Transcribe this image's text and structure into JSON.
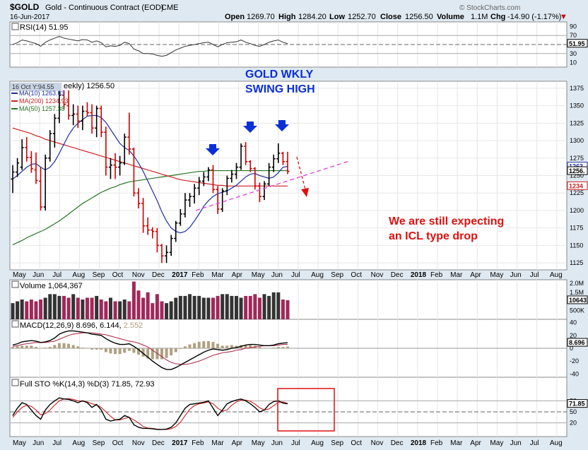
{
  "header": {
    "symbol": "$GOLD",
    "name": "Gold - Continuous Contract (EOD)",
    "exchange": "CME",
    "date": "16-Jun-2017",
    "open_label": "Open",
    "open": "1269.70",
    "high_label": "High",
    "high": "1284.20",
    "low_label": "Low",
    "low": "1252.70",
    "close_label": "Close",
    "close": "1256.50",
    "volume_label": "Volume",
    "volume": "1.1M",
    "chg_label": "Chg",
    "chg": "-14.90 (-1.17%)",
    "chg_arrow": "▼",
    "watermark": "© StockCharts.com"
  },
  "colors": {
    "panel_bg": "#ffffff",
    "outer_bg": "#dfe9f1",
    "up_bar": "#000000",
    "down_bar": "#cc0000",
    "ma10": "#1f2fa0",
    "ma200": "#cc2222",
    "ma50": "#227722",
    "volume_up": "#333333",
    "volume_down": "#a0285a",
    "annotation_blue": "#0a2fd8",
    "annotation_red": "#e01010",
    "trendline": "#e040e0",
    "histogram": "#b0a080"
  },
  "x_axis": {
    "months": [
      "May",
      "Jun",
      "Jul",
      "Aug",
      "Sep",
      "Oct",
      "Nov",
      "Dec",
      "2017",
      "Feb",
      "Mar",
      "Apr",
      "May",
      "Jun",
      "Jul",
      "Aug",
      "Sep",
      "Oct",
      "Nov",
      "Dec",
      "2018",
      "Feb",
      "Mar",
      "Apr",
      "May",
      "Jun",
      "Jul",
      "Aug"
    ]
  },
  "rsi": {
    "title": "RSI(14) 51.95",
    "value_label": "51.95",
    "ticks": [
      "90",
      "70",
      "50",
      "30",
      "10"
    ]
  },
  "price": {
    "title_hidden": "eekly) 1256.50",
    "date_badge": "16 Oct Y:94.55",
    "legend": [
      {
        "label": "MA(10) 1263.03",
        "color": "#1f2fa0"
      },
      {
        "label": "MA(200) 1234.93",
        "color": "#cc2222"
      },
      {
        "label": "MA(50) 1257.38",
        "color": "#227722"
      }
    ],
    "ticks": [
      "1375",
      "1350",
      "1325",
      "1300",
      "1275",
      "1250",
      "1225",
      "1200",
      "1175",
      "1150",
      "1125"
    ],
    "badges": [
      {
        "label": "1263",
        "value": 1263.03,
        "color": "#1f2fa0"
      },
      {
        "label": "1256.",
        "value": 1256.5,
        "color": "#000000"
      },
      {
        "label": "1234",
        "value": 1234.93,
        "color": "#cc2222"
      }
    ]
  },
  "volume_panel": {
    "title": "Volume 1,064,367",
    "value_label": "10643",
    "ticks": [
      "2.0M",
      "1.5M",
      "1.0M",
      "500K"
    ]
  },
  "macd_panel": {
    "title_main": "MACD(12,26,9) 8.696, 6.144, ",
    "title_hist": "2.552",
    "value_label": "8.696",
    "ticks": [
      "40",
      "20",
      "0",
      "-20",
      "-40"
    ]
  },
  "sto_panel": {
    "title": "Full STO %K(14,3) %D(3) 71.85, 72.93",
    "value_label": "71.85",
    "ticks": [
      "80",
      "50",
      "20"
    ]
  },
  "annotations": {
    "title_line1": "GOLD WKLY",
    "title_line2": "SWING HIGH",
    "note_line1": "We are still expecting",
    "note_line2": "an ICL type drop"
  },
  "chart_data": {
    "type": "ohlc",
    "timeframe": "weekly",
    "price_ylim": [
      1115,
      1385
    ],
    "ohlc": [
      [
        1245,
        1265,
        1225,
        1255
      ],
      [
        1255,
        1275,
        1248,
        1268
      ],
      [
        1262,
        1302,
        1258,
        1290
      ],
      [
        1290,
        1305,
        1270,
        1276
      ],
      [
        1276,
        1285,
        1254,
        1260
      ],
      [
        1258,
        1283,
        1238,
        1243
      ],
      [
        1242,
        1262,
        1200,
        1205
      ],
      [
        1205,
        1280,
        1200,
        1275
      ],
      [
        1275,
        1315,
        1270,
        1310
      ],
      [
        1310,
        1338,
        1290,
        1332
      ],
      [
        1332,
        1375,
        1325,
        1365
      ],
      [
        1365,
        1372,
        1345,
        1352
      ],
      [
        1350,
        1372,
        1330,
        1336
      ],
      [
        1336,
        1352,
        1322,
        1338
      ],
      [
        1338,
        1350,
        1318,
        1328
      ],
      [
        1328,
        1350,
        1315,
        1342
      ],
      [
        1342,
        1355,
        1335,
        1340
      ],
      [
        1340,
        1352,
        1310,
        1318
      ],
      [
        1318,
        1350,
        1305,
        1346
      ],
      [
        1346,
        1350,
        1305,
        1312
      ],
      [
        1312,
        1320,
        1250,
        1262
      ],
      [
        1262,
        1275,
        1245,
        1265
      ],
      [
        1265,
        1282,
        1245,
        1262
      ],
      [
        1262,
        1278,
        1250,
        1268
      ],
      [
        1268,
        1310,
        1265,
        1305
      ],
      [
        1305,
        1340,
        1280,
        1288
      ],
      [
        1288,
        1290,
        1220,
        1225
      ],
      [
        1225,
        1232,
        1203,
        1210
      ],
      [
        1210,
        1218,
        1168,
        1178
      ],
      [
        1178,
        1190,
        1165,
        1172
      ],
      [
        1172,
        1176,
        1160,
        1170
      ],
      [
        1170,
        1175,
        1140,
        1150
      ],
      [
        1150,
        1152,
        1125,
        1135
      ],
      [
        1135,
        1150,
        1125,
        1140
      ],
      [
        1140,
        1165,
        1135,
        1160
      ],
      [
        1160,
        1185,
        1155,
        1182
      ],
      [
        1182,
        1202,
        1178,
        1195
      ],
      [
        1195,
        1225,
        1190,
        1215
      ],
      [
        1215,
        1225,
        1205,
        1220
      ],
      [
        1220,
        1238,
        1210,
        1232
      ],
      [
        1232,
        1248,
        1222,
        1242
      ],
      [
        1242,
        1255,
        1235,
        1248
      ],
      [
        1248,
        1262,
        1242,
        1258
      ],
      [
        1258,
        1265,
        1225,
        1230
      ],
      [
        1230,
        1235,
        1195,
        1202
      ],
      [
        1202,
        1232,
        1198,
        1228
      ],
      [
        1228,
        1250,
        1222,
        1246
      ],
      [
        1246,
        1258,
        1240,
        1252
      ],
      [
        1252,
        1268,
        1245,
        1262
      ],
      [
        1262,
        1296,
        1258,
        1292
      ],
      [
        1292,
        1298,
        1265,
        1270
      ],
      [
        1270,
        1272,
        1255,
        1260
      ],
      [
        1260,
        1262,
        1230,
        1235
      ],
      [
        1235,
        1240,
        1212,
        1220
      ],
      [
        1220,
        1242,
        1215,
        1238
      ],
      [
        1238,
        1268,
        1235,
        1262
      ],
      [
        1262,
        1280,
        1255,
        1274
      ],
      [
        1274,
        1296,
        1268,
        1282
      ],
      [
        1282,
        1284,
        1265,
        1270
      ],
      [
        1270,
        1284,
        1252,
        1256
      ]
    ],
    "ma10": [
      1245,
      1250,
      1256,
      1262,
      1266,
      1267,
      1262,
      1258,
      1262,
      1270,
      1282,
      1295,
      1308,
      1318,
      1325,
      1330,
      1335,
      1336,
      1336,
      1333,
      1326,
      1316,
      1306,
      1296,
      1290,
      1286,
      1278,
      1268,
      1256,
      1242,
      1228,
      1214,
      1198,
      1185,
      1175,
      1170,
      1168,
      1170,
      1176,
      1185,
      1195,
      1206,
      1214,
      1220,
      1224,
      1226,
      1228,
      1232,
      1236,
      1242,
      1248,
      1252,
      1253,
      1250,
      1248,
      1246,
      1248,
      1254,
      1262,
      1263
    ],
    "ma50": [
      1151,
      1154,
      1157,
      1161,
      1164,
      1167,
      1170,
      1173,
      1177,
      1181,
      1185,
      1190,
      1195,
      1200,
      1205,
      1210,
      1214,
      1218,
      1222,
      1226,
      1229,
      1232,
      1234,
      1237,
      1239,
      1241,
      1242,
      1243,
      1244,
      1245,
      1246,
      1247,
      1248,
      1249,
      1250,
      1251,
      1252,
      1253,
      1254,
      1255,
      1256,
      1256,
      1257,
      1257,
      1257,
      1257,
      1257,
      1257,
      1257,
      1257,
      1257,
      1257,
      1257,
      1257,
      1257,
      1257,
      1257,
      1257,
      1257,
      1257
    ],
    "ma200": [
      1318,
      1316,
      1314,
      1312,
      1310,
      1307,
      1305,
      1302,
      1300,
      1298,
      1296,
      1294,
      1292,
      1290,
      1288,
      1286,
      1284,
      1282,
      1280,
      1278,
      1276,
      1274,
      1272,
      1270,
      1268,
      1266,
      1264,
      1262,
      1260,
      1258,
      1256,
      1254,
      1252,
      1250,
      1248,
      1246,
      1244,
      1243,
      1242,
      1241,
      1240,
      1239,
      1238,
      1237,
      1236,
      1236,
      1235,
      1235,
      1235,
      1235,
      1235,
      1235,
      1235,
      1235,
      1235,
      1235,
      1235,
      1235,
      1235,
      1235
    ],
    "rsi": [
      50,
      54,
      60,
      58,
      55,
      52,
      46,
      55,
      60,
      64,
      68,
      64,
      62,
      60,
      58,
      61,
      60,
      55,
      58,
      54,
      45,
      47,
      46,
      48,
      55,
      52,
      40,
      36,
      30,
      30,
      29,
      26,
      24,
      26,
      32,
      38,
      42,
      46,
      48,
      50,
      52,
      54,
      55,
      50,
      45,
      50,
      54,
      55,
      56,
      60,
      55,
      52,
      48,
      46,
      50,
      55,
      58,
      60,
      55,
      52
    ],
    "volume_m": [
      0.9,
      1.0,
      1.1,
      1.0,
      1.1,
      1.0,
      1.1,
      1.2,
      1.4,
      1.4,
      1.3,
      1.3,
      1.2,
      1.4,
      1.2,
      1.1,
      1.2,
      1.2,
      1.3,
      1.1,
      1.0,
      1.2,
      1.0,
      1.0,
      1.1,
      1.0,
      2.1,
      1.6,
      1.2,
      1.5,
      0.9,
      1.4,
      1.0,
      0.9,
      1.0,
      1.2,
      1.3,
      1.3,
      1.4,
      1.3,
      1.3,
      1.2,
      1.2,
      1.2,
      1.3,
      1.4,
      1.4,
      1.3,
      1.3,
      1.2,
      1.3,
      1.3,
      1.4,
      1.2,
      1.4,
      1.3,
      1.5,
      1.5,
      1.1,
      1.06
    ],
    "macd": [
      5,
      7,
      10,
      11,
      12,
      11,
      9,
      10,
      12,
      16,
      22,
      25,
      27,
      27,
      26,
      25,
      24,
      22,
      21,
      20,
      15,
      11,
      8,
      6,
      6,
      7,
      3,
      -2,
      -8,
      -14,
      -20,
      -25,
      -30,
      -33,
      -33,
      -30,
      -26,
      -22,
      -18,
      -14,
      -10,
      -6,
      -3,
      -1,
      -2,
      -3,
      -2,
      0,
      1,
      3,
      5,
      6,
      6,
      5,
      4,
      4,
      5,
      7,
      8,
      8.696
    ],
    "macd_signal": [
      3,
      4,
      6,
      7,
      8,
      9,
      9,
      9,
      10,
      11,
      14,
      17,
      20,
      22,
      23,
      24,
      24,
      24,
      23,
      22,
      21,
      19,
      17,
      15,
      13,
      11,
      10,
      8,
      5,
      2,
      -3,
      -8,
      -13,
      -18,
      -22,
      -24,
      -25,
      -25,
      -24,
      -22,
      -20,
      -17,
      -14,
      -11,
      -9,
      -7,
      -6,
      -5,
      -3,
      -2,
      0,
      1,
      2,
      3,
      4,
      4,
      4,
      5,
      6,
      6.144
    ],
    "sto_k": [
      40,
      60,
      75,
      70,
      55,
      40,
      30,
      55,
      70,
      80,
      88,
      85,
      84,
      80,
      75,
      80,
      75,
      62,
      70,
      55,
      30,
      25,
      28,
      30,
      40,
      35,
      15,
      8,
      5,
      5,
      4,
      2,
      2,
      3,
      8,
      20,
      40,
      60,
      70,
      72,
      74,
      76,
      80,
      60,
      40,
      55,
      72,
      78,
      82,
      85,
      80,
      72,
      62,
      50,
      55,
      70,
      78,
      80,
      74,
      71.85
    ],
    "sto_d": [
      35,
      50,
      62,
      68,
      65,
      55,
      42,
      45,
      55,
      68,
      80,
      85,
      86,
      84,
      80,
      79,
      77,
      72,
      69,
      62,
      50,
      38,
      28,
      28,
      32,
      35,
      28,
      20,
      10,
      6,
      5,
      3,
      2,
      2,
      4,
      10,
      22,
      40,
      57,
      67,
      72,
      74,
      77,
      72,
      60,
      52,
      55,
      68,
      77,
      82,
      82,
      79,
      71,
      61,
      55,
      58,
      67,
      76,
      77,
      72.93
    ]
  }
}
